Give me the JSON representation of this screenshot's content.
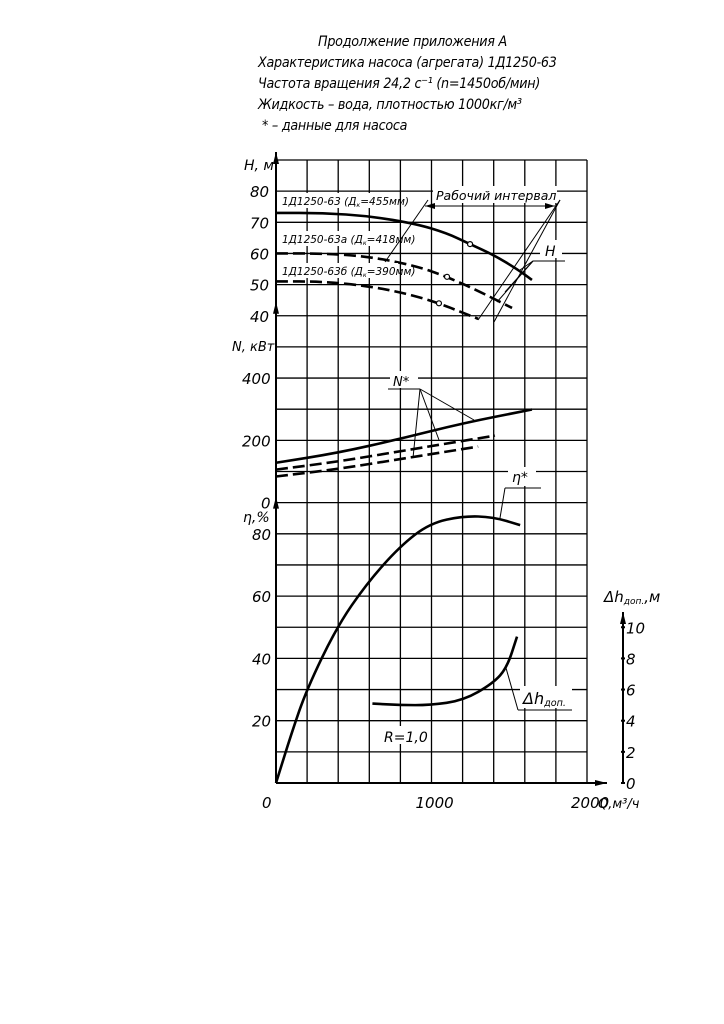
{
  "header": {
    "line1": "Продолжение приложения А",
    "line2": "Характеристика насоса (агрегата) 1Д1250-63",
    "line3": "Частота вращения 24,2 с⁻¹ (n=1450об/мин)",
    "line4": "Жидкость – вода, плотностью 1000кг/м³",
    "line5": "* – данные для насоса"
  },
  "chart_data": {
    "type": "line",
    "x_axis": {
      "label": "Q,м³/ч",
      "range": [
        0,
        2000
      ],
      "ticks": [
        "0",
        "1000",
        "2000"
      ],
      "grid_step": 200
    },
    "grid": true,
    "panels": [
      {
        "id": "head",
        "ylabel": "H, м",
        "ylim": [
          30,
          90
        ],
        "ticks": [
          "40",
          "50",
          "60",
          "70",
          "80"
        ],
        "curve_label": "H",
        "series": [
          {
            "name": "1Д1250-63 (Дк=455мм)",
            "name_main": "1Д1250-63 (Д",
            "name_sub": "к",
            "name_tail": "=455мм)",
            "style": "solid",
            "x": [
              0,
              300,
              600,
              900,
              1100,
              1248,
              1400,
              1550,
              1646
            ],
            "y": [
              73,
              73,
              72,
              69.5,
              66.5,
              63,
              59.5,
              55,
              51.5
            ],
            "marker_x": 1248,
            "marker_y": 63
          },
          {
            "name": "1Д1250-63а (Дк=418мм)",
            "name_main": "1Д1250-63а (Д",
            "name_sub": "к",
            "name_tail": "=418мм)",
            "style": "dashed",
            "x": [
              0,
              300,
              600,
              900,
              1100,
              1300,
              1518
            ],
            "y": [
              60,
              60,
              59,
              56,
              52.5,
              48,
              42.5
            ],
            "marker_x": 1100,
            "marker_y": 52.5
          },
          {
            "name": "1Д1250-63б (Дк=390мм)",
            "name_main": "1Д1250-63б (Д",
            "name_sub": "к",
            "name_tail": "=390мм)",
            "style": "dashed",
            "x": [
              0,
              300,
              600,
              850,
              1048,
              1200,
              1300
            ],
            "y": [
              51,
              51,
              49.5,
              47,
              44,
              41,
              39
            ],
            "marker_x": 1048,
            "marker_y": 44
          }
        ],
        "annotation": "Рабочий интервал",
        "working_interval": [
          950,
          1800
        ]
      },
      {
        "id": "power",
        "ylabel": "N, кВт",
        "ylim": [
          0,
          600
        ],
        "ticks": [
          "0",
          "200",
          "400"
        ],
        "curve_label": "N*",
        "series": [
          {
            "style": "solid",
            "x": [
              0,
              400,
              800,
              1200,
              1646
            ],
            "y": [
              128,
              160,
              205,
              255,
              299
            ]
          },
          {
            "style": "dashed",
            "x": [
              0,
              400,
              800,
              1100,
              1408
            ],
            "y": [
              106,
              132,
              165,
              190,
              215
            ]
          },
          {
            "style": "dashed",
            "x": [
              0,
              400,
              800,
              1050,
              1300
            ],
            "y": [
              84,
              108,
              140,
              160,
              180
            ]
          }
        ]
      },
      {
        "id": "efficiency",
        "ylabel": "η,%",
        "ylim": [
          0,
          90
        ],
        "ticks": [
          "20",
          "40",
          "60",
          "80"
        ],
        "curve_label": "η*",
        "series": [
          {
            "style": "solid",
            "x": [
              0,
              100,
              197,
              390,
              583,
              797,
              990,
              1205,
              1396,
              1570
            ],
            "y": [
              0,
              16,
              30,
              50,
              64,
              76,
              83.4,
              85.7,
              85.4,
              82.8
            ]
          }
        ],
        "annotation": "R=1,0"
      },
      {
        "id": "npsh",
        "ylabel": "Δhдоп.,м",
        "ylabel_main": "Δh",
        "ylabel_sub": "доп.",
        "ylabel_tail": ",м",
        "ylim": [
          0,
          10
        ],
        "ticks": [
          "0",
          "2",
          "4",
          "6",
          "8",
          "10"
        ],
        "curve_label": "Δhдоп.",
        "curve_label_main": "Δh",
        "curve_label_sub": "доп.",
        "series": [
          {
            "style": "solid",
            "x": [
              620,
              800,
              990,
              1205,
              1396,
              1485,
              1550
            ],
            "y": [
              5.1,
              5.0,
              5.0,
              5.3,
              6.4,
              7.4,
              9.4
            ]
          }
        ]
      }
    ]
  }
}
